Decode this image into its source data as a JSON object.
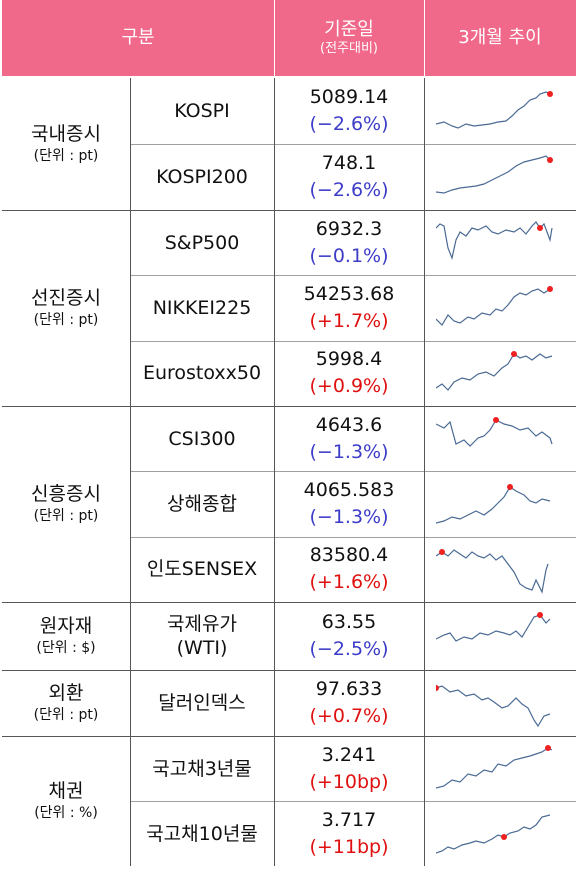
{
  "header": {
    "category": "구분",
    "base_date": "기준일",
    "base_date_sub": "(전주대비)",
    "trend": "3개월 추이"
  },
  "groups": [
    {
      "name": "국내증시",
      "unit": "(단위 : pt)",
      "rows": [
        {
          "name": "KOSPI",
          "value": "5089.14",
          "change": "(−2.6%)",
          "dir": "neg",
          "trend_icon": "sparkline-chart"
        },
        {
          "name": "KOSPI200",
          "value": "748.1",
          "change": "(−2.6%)",
          "dir": "neg",
          "trend_icon": "sparkline-chart"
        }
      ]
    },
    {
      "name": "선진증시",
      "unit": "(단위 : pt)",
      "rows": [
        {
          "name": "S&P500",
          "value": "6932.3",
          "change": "(−0.1%)",
          "dir": "neg",
          "trend_icon": "sparkline-chart"
        },
        {
          "name": "NIKKEI225",
          "value": "54253.68",
          "change": "(+1.7%)",
          "dir": "pos",
          "trend_icon": "sparkline-chart"
        },
        {
          "name": "Eurostoxx50",
          "value": "5998.4",
          "change": "(+0.9%)",
          "dir": "pos",
          "trend_icon": "sparkline-chart"
        }
      ]
    },
    {
      "name": "신흥증시",
      "unit": "(단위 : pt)",
      "rows": [
        {
          "name": "CSI300",
          "value": "4643.6",
          "change": "(−1.3%)",
          "dir": "neg",
          "trend_icon": "sparkline-chart"
        },
        {
          "name": "상해종합",
          "value": "4065.583",
          "change": "(−1.3%)",
          "dir": "neg",
          "trend_icon": "sparkline-chart"
        },
        {
          "name": "인도SENSEX",
          "value": "83580.4",
          "change": "(+1.6%)",
          "dir": "pos",
          "trend_icon": "sparkline-chart"
        }
      ]
    },
    {
      "name": "원자재",
      "unit": "(단위 : $)",
      "rows": [
        {
          "name": "국제유가",
          "name2": "(WTI)",
          "value": "63.55",
          "change": "(−2.5%)",
          "dir": "neg",
          "trend_icon": "sparkline-chart"
        }
      ]
    },
    {
      "name": "외환",
      "unit": "(단위 : pt)",
      "rows": [
        {
          "name": "달러인덱스",
          "value": "97.633",
          "change": "(+0.7%)",
          "dir": "pos",
          "trend_icon": "sparkline-chart"
        }
      ]
    },
    {
      "name": "채권",
      "unit": "(단위 : %)",
      "rows": [
        {
          "name": "국고채3년물",
          "value": "3.241",
          "change": "(+10bp)",
          "dir": "pos",
          "trend_icon": "sparkline-chart"
        },
        {
          "name": "국고채10년물",
          "value": "3.717",
          "change": "(+11bp)",
          "dir": "pos",
          "trend_icon": "sparkline-chart"
        }
      ]
    }
  ],
  "colors": {
    "header_bg": "#f0688a",
    "negative": "#3c3cc8",
    "positive": "#e01010",
    "sparkline": "#4a6a94",
    "sparkline_peak_marker": "#ee2020"
  }
}
